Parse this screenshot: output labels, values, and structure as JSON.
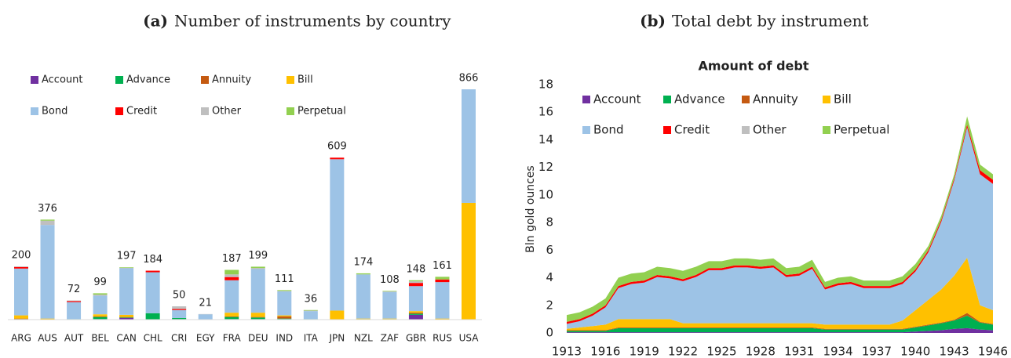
{
  "chart_data": [
    {
      "type": "bar",
      "stacked": true,
      "label": "(a)",
      "caption": "Number of instruments by country",
      "categories": [
        "ARG",
        "AUS",
        "AUT",
        "BEL",
        "CAN",
        "CHL",
        "CRI",
        "EGY",
        "FRA",
        "DEU",
        "IND",
        "ITA",
        "JPN",
        "NZL",
        "ZAF",
        "GBR",
        "RUS",
        "USA"
      ],
      "totals": [
        200,
        376,
        72,
        99,
        197,
        184,
        50,
        21,
        187,
        199,
        111,
        36,
        609,
        174,
        108,
        148,
        161,
        866
      ],
      "legend": "upper left",
      "series": [
        {
          "name": "Account",
          "color": "#7030a0",
          "values": [
            0,
            0,
            0,
            2,
            6,
            0,
            2,
            0,
            2,
            2,
            2,
            0,
            0,
            0,
            0,
            18,
            0,
            0
          ]
        },
        {
          "name": "Advance",
          "color": "#00b050",
          "values": [
            2,
            0,
            2,
            8,
            2,
            24,
            4,
            0,
            8,
            6,
            2,
            2,
            0,
            2,
            2,
            4,
            0,
            0
          ]
        },
        {
          "name": "Annuity",
          "color": "#c55a11",
          "values": [
            2,
            0,
            0,
            2,
            2,
            0,
            0,
            0,
            2,
            2,
            8,
            0,
            0,
            0,
            0,
            4,
            0,
            0
          ]
        },
        {
          "name": "Bill",
          "color": "#ffc000",
          "values": [
            12,
            4,
            0,
            8,
            8,
            0,
            0,
            0,
            14,
            16,
            4,
            0,
            34,
            2,
            2,
            6,
            4,
            439
          ]
        },
        {
          "name": "Bond",
          "color": "#9dc3e6",
          "values": [
            176,
            352,
            64,
            70,
            175,
            154,
            30,
            20,
            122,
            164,
            90,
            30,
            569,
            166,
            100,
            94,
            137,
            427
          ]
        },
        {
          "name": "Credit",
          "color": "#ff0000",
          "values": [
            6,
            0,
            4,
            0,
            0,
            6,
            4,
            0,
            12,
            0,
            0,
            0,
            6,
            0,
            0,
            12,
            10,
            0
          ]
        },
        {
          "name": "Other",
          "color": "#bfbfbf",
          "values": [
            2,
            16,
            2,
            4,
            2,
            0,
            10,
            1,
            10,
            4,
            2,
            2,
            0,
            0,
            2,
            6,
            0,
            0
          ]
        },
        {
          "name": "Perpetual",
          "color": "#92d050",
          "values": [
            0,
            4,
            0,
            5,
            2,
            0,
            0,
            0,
            17,
            5,
            3,
            2,
            0,
            4,
            2,
            4,
            10,
            0
          ]
        }
      ]
    },
    {
      "type": "area",
      "stacked": true,
      "label": "(b)",
      "caption": "Total debt by instrument",
      "title": "Amount of debt",
      "ylabel": "Bln gold ounces",
      "legend": "upper left",
      "grid": false,
      "x": [
        1913,
        1914,
        1915,
        1916,
        1917,
        1918,
        1919,
        1920,
        1921,
        1922,
        1923,
        1924,
        1925,
        1926,
        1927,
        1928,
        1929,
        1930,
        1931,
        1932,
        1933,
        1934,
        1935,
        1936,
        1937,
        1938,
        1939,
        1940,
        1941,
        1942,
        1943,
        1944,
        1945,
        1946
      ],
      "xlim": [
        1913,
        1946
      ],
      "xticks": [
        1913,
        1916,
        1919,
        1922,
        1925,
        1928,
        1931,
        1934,
        1937,
        1940,
        1943,
        1946
      ],
      "ylim": [
        0,
        18
      ],
      "yticks": [
        0,
        2,
        4,
        6,
        8,
        10,
        12,
        14,
        16,
        18
      ],
      "series": [
        {
          "name": "Account",
          "color": "#7030a0",
          "values": [
            0.05,
            0.05,
            0.05,
            0.05,
            0.05,
            0.05,
            0.05,
            0.05,
            0.05,
            0.05,
            0.05,
            0.05,
            0.05,
            0.05,
            0.05,
            0.05,
            0.05,
            0.05,
            0.05,
            0.05,
            0.05,
            0.05,
            0.05,
            0.05,
            0.05,
            0.05,
            0.05,
            0.1,
            0.15,
            0.2,
            0.3,
            0.35,
            0.25,
            0.2
          ]
        },
        {
          "name": "Advance",
          "color": "#00b050",
          "values": [
            0.1,
            0.1,
            0.1,
            0.1,
            0.3,
            0.3,
            0.3,
            0.3,
            0.3,
            0.3,
            0.3,
            0.3,
            0.3,
            0.3,
            0.3,
            0.3,
            0.3,
            0.3,
            0.3,
            0.3,
            0.2,
            0.2,
            0.2,
            0.2,
            0.2,
            0.2,
            0.2,
            0.3,
            0.4,
            0.5,
            0.6,
            0.9,
            0.5,
            0.4
          ]
        },
        {
          "name": "Annuity",
          "color": "#c55a11",
          "values": [
            0.05,
            0.05,
            0.05,
            0.05,
            0.05,
            0.05,
            0.05,
            0.05,
            0.05,
            0.05,
            0.05,
            0.05,
            0.05,
            0.05,
            0.05,
            0.05,
            0.05,
            0.05,
            0.05,
            0.05,
            0.05,
            0.05,
            0.05,
            0.05,
            0.05,
            0.05,
            0.05,
            0.05,
            0.05,
            0.05,
            0.05,
            0.2,
            0.05,
            0.05
          ]
        },
        {
          "name": "Bill",
          "color": "#ffc000",
          "values": [
            0.1,
            0.2,
            0.3,
            0.4,
            0.6,
            0.6,
            0.6,
            0.6,
            0.6,
            0.3,
            0.3,
            0.3,
            0.3,
            0.3,
            0.3,
            0.3,
            0.3,
            0.3,
            0.3,
            0.3,
            0.3,
            0.3,
            0.3,
            0.3,
            0.3,
            0.3,
            0.6,
            1.2,
            1.8,
            2.4,
            3.2,
            4.0,
            1.2,
            1.0
          ]
        },
        {
          "name": "Bond",
          "color": "#9dc3e6",
          "values": [
            0.35,
            0.45,
            0.75,
            1.25,
            2.25,
            2.55,
            2.65,
            3.05,
            2.95,
            3.05,
            3.35,
            3.85,
            3.85,
            4.05,
            4.05,
            3.95,
            4.05,
            3.35,
            3.45,
            3.95,
            2.55,
            2.85,
            2.95,
            2.65,
            2.65,
            2.65,
            2.65,
            2.8,
            3.45,
            4.9,
            6.9,
            9.45,
            9.5,
            9.15
          ]
        },
        {
          "name": "Credit",
          "color": "#ff0000",
          "values": [
            0.15,
            0.15,
            0.15,
            0.15,
            0.15,
            0.15,
            0.15,
            0.15,
            0.15,
            0.15,
            0.15,
            0.15,
            0.15,
            0.15,
            0.15,
            0.15,
            0.15,
            0.15,
            0.15,
            0.15,
            0.15,
            0.15,
            0.15,
            0.15,
            0.15,
            0.15,
            0.15,
            0.15,
            0.15,
            0.15,
            0.15,
            0.2,
            0.3,
            0.3
          ]
        },
        {
          "name": "Other",
          "color": "#bfbfbf",
          "values": [
            0,
            0,
            0,
            0,
            0,
            0,
            0,
            0,
            0,
            0,
            0,
            0,
            0,
            0,
            0,
            0,
            0,
            0,
            0,
            0,
            0,
            0,
            0,
            0,
            0,
            0,
            0,
            0,
            0,
            0,
            0,
            0,
            0,
            0
          ]
        },
        {
          "name": "Perpetual",
          "color": "#92d050",
          "values": [
            0.5,
            0.5,
            0.5,
            0.5,
            0.6,
            0.6,
            0.6,
            0.6,
            0.6,
            0.6,
            0.6,
            0.5,
            0.5,
            0.5,
            0.5,
            0.5,
            0.5,
            0.5,
            0.5,
            0.5,
            0.4,
            0.4,
            0.4,
            0.4,
            0.4,
            0.4,
            0.4,
            0.4,
            0.3,
            0.3,
            0.3,
            0.6,
            0.4,
            0.4
          ]
        }
      ]
    }
  ]
}
